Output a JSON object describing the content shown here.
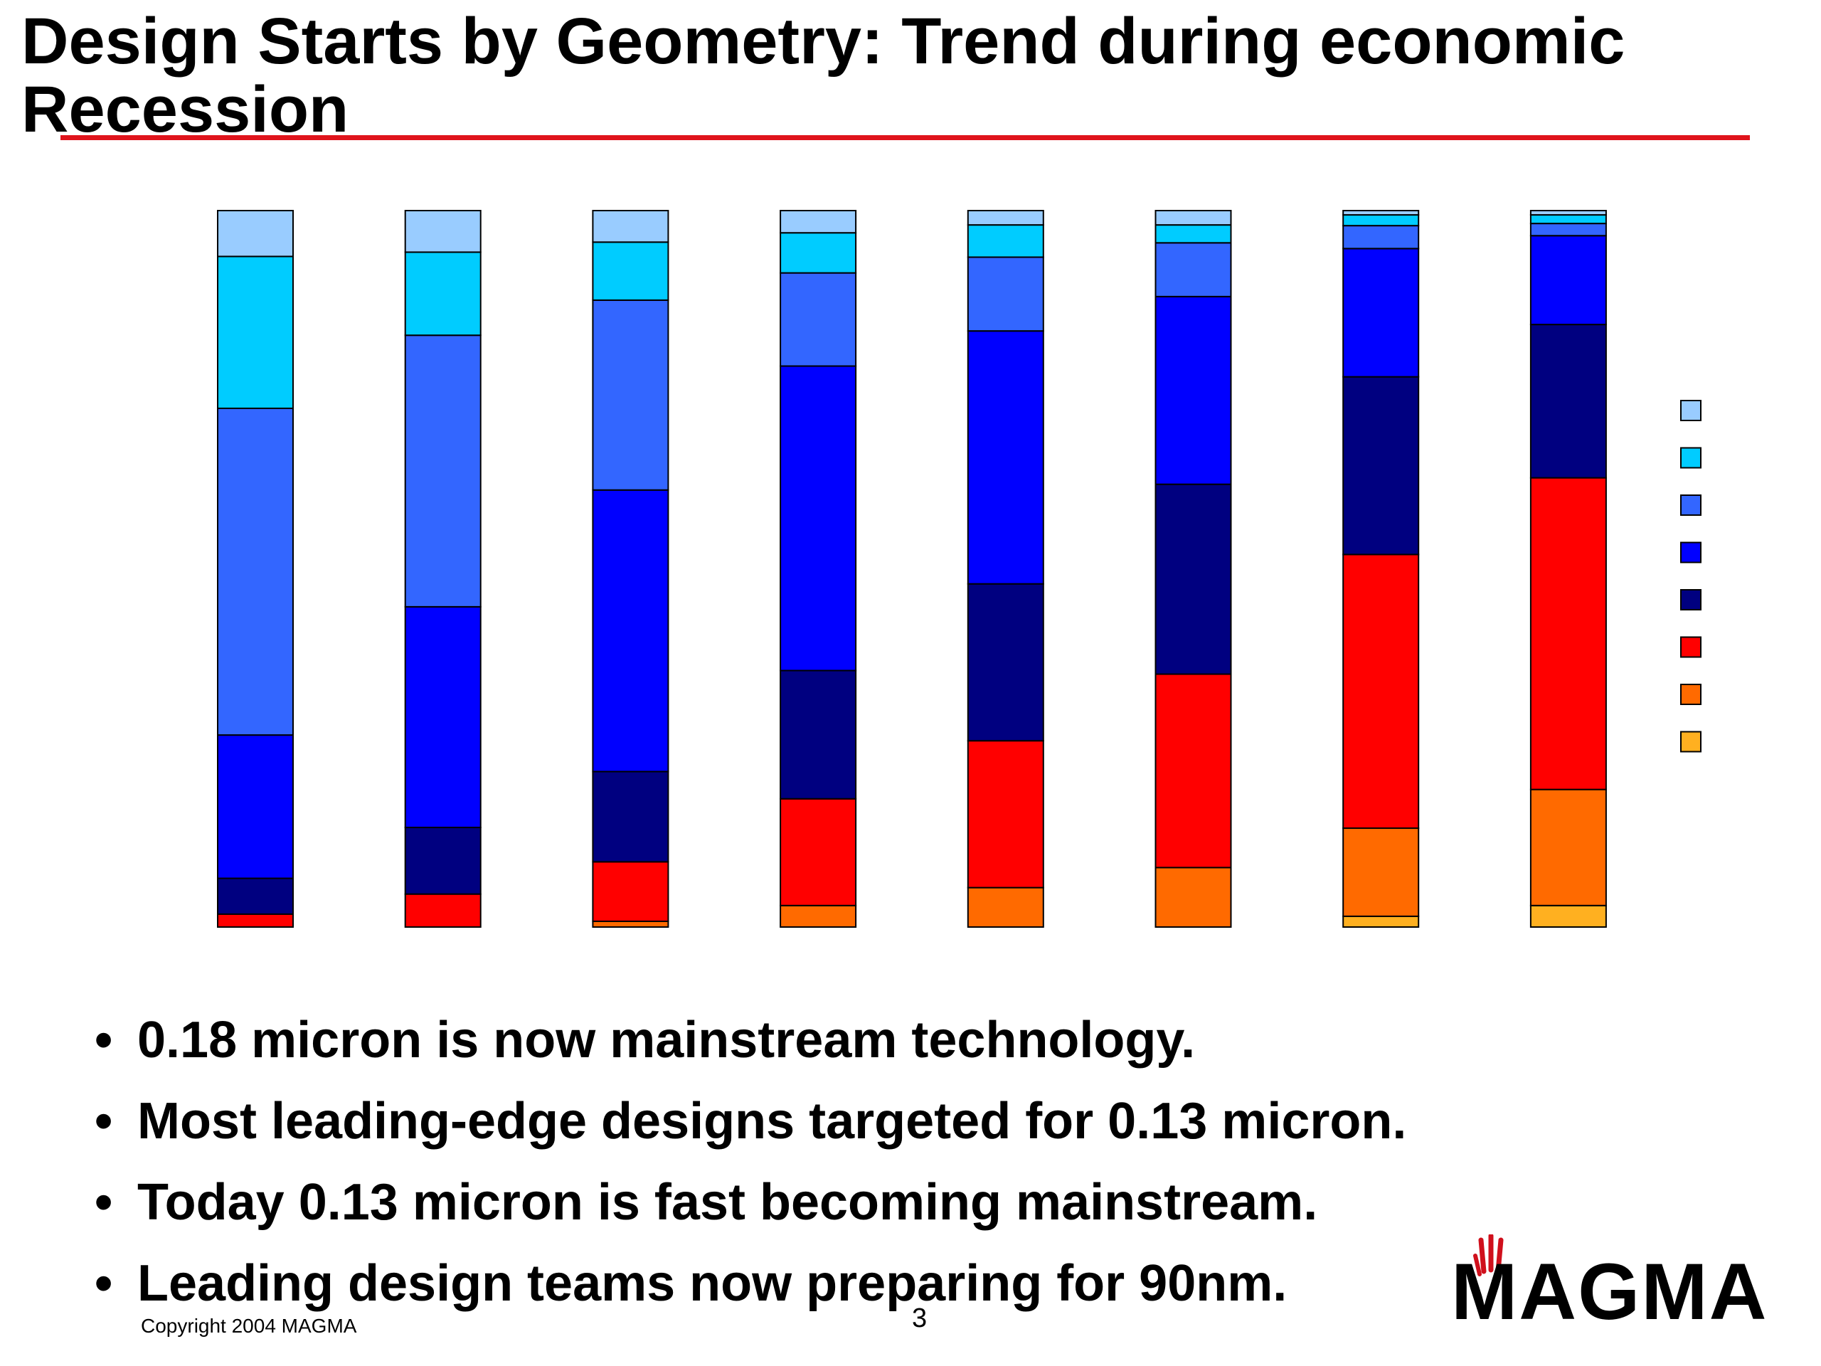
{
  "slide": {
    "title": "Design Starts by Geometry: Trend during economic Recession",
    "bullets": [
      "0.18 micron is now mainstream technology.",
      "Most leading-edge designs targeted for 0.13 micron.",
      "Today 0.13 micron is fast becoming mainstream.",
      "Leading design teams now preparing for 90nm."
    ],
    "bullet_glyph": "•",
    "copyright": "Copyright 2004 MAGMA",
    "page_number": "3",
    "logo_text": "MAGMA",
    "colors": {
      "title_rule": "#e0141c",
      "logo_accent": "#d0101c"
    }
  },
  "chart_data": {
    "type": "bar",
    "stacked": true,
    "normalized_percent": true,
    "categories": [
      "",
      "",
      "",
      "",
      "",
      "",
      "",
      ""
    ],
    "ylim": [
      0,
      100
    ],
    "legend_placement": "right",
    "grid": false,
    "series": [
      {
        "color": "#ffb020",
        "values": [
          0.0,
          0.0,
          0.0,
          0.0,
          0.0,
          0.0,
          1.5,
          3.0
        ]
      },
      {
        "color": "#ff6a00",
        "values": [
          0.0,
          0.0,
          0.8,
          3.0,
          5.5,
          8.3,
          12.3,
          16.2
        ]
      },
      {
        "color": "#ff0000",
        "values": [
          1.8,
          4.6,
          8.3,
          14.9,
          20.5,
          27.0,
          38.2,
          43.5
        ]
      },
      {
        "color": "#000080",
        "values": [
          5.0,
          9.3,
          12.6,
          17.9,
          21.9,
          26.5,
          24.8,
          21.4
        ]
      },
      {
        "color": "#0000ff",
        "values": [
          20.0,
          30.8,
          39.3,
          42.5,
          35.3,
          26.2,
          17.9,
          12.4
        ]
      },
      {
        "color": "#3366ff",
        "values": [
          45.6,
          37.9,
          26.5,
          13.0,
          10.3,
          7.5,
          3.2,
          1.7
        ]
      },
      {
        "color": "#00ccff",
        "values": [
          21.2,
          11.6,
          8.1,
          5.6,
          4.5,
          2.5,
          1.5,
          1.2
        ]
      },
      {
        "color": "#99ccff",
        "values": [
          6.4,
          5.8,
          4.4,
          3.1,
          2.0,
          2.0,
          0.6,
          0.6
        ]
      }
    ]
  }
}
